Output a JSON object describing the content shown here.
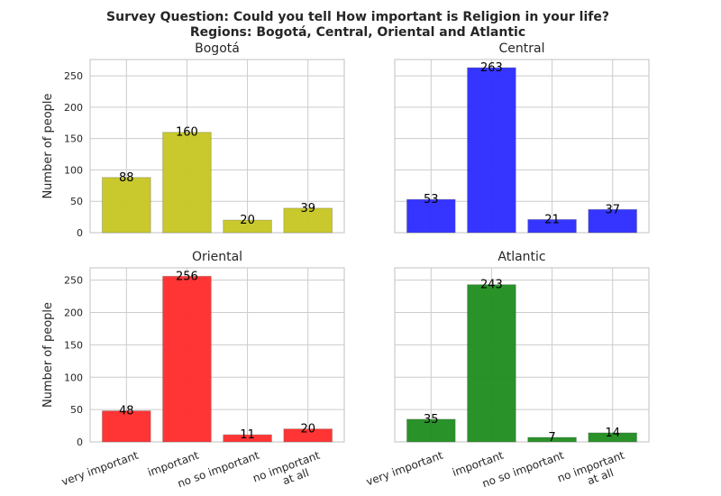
{
  "title": [
    "Survey Question: Could you tell How important is Religion in your life?",
    "Regions: Bogotá, Central, Oriental and Atlantic"
  ],
  "chart_data": [
    {
      "type": "bar",
      "title": "Bogotá",
      "ylabel": "Number of people",
      "values": [
        88,
        160,
        20,
        39
      ],
      "color": "#c6c622",
      "ylim": [
        0,
        276
      ],
      "yticks": [
        0,
        50,
        100,
        150,
        200,
        250
      ],
      "grid": true,
      "ytick_labels": true
    },
    {
      "type": "bar",
      "title": "Central",
      "values": [
        53,
        263,
        21,
        37
      ],
      "color": "#2a2aff",
      "ylim": [
        0,
        276
      ],
      "yticks": [
        0,
        50,
        100,
        150,
        200,
        250
      ],
      "grid": true,
      "ytick_labels": false
    },
    {
      "type": "bar",
      "title": "Oriental",
      "ylabel": "Number of people",
      "categories": [
        "very important",
        "important",
        "no so important",
        "no important\nat all"
      ],
      "values": [
        48,
        256,
        11,
        20
      ],
      "color": "#ff2a2a",
      "ylim": [
        0,
        269
      ],
      "yticks": [
        0,
        50,
        100,
        150,
        200,
        250
      ],
      "grid": true,
      "ytick_labels": true
    },
    {
      "type": "bar",
      "title": "Atlantic",
      "categories": [
        "very important",
        "important",
        "no so important",
        "no important\nat all"
      ],
      "values": [
        35,
        243,
        7,
        14
      ],
      "color": "#1e8c1e",
      "ylim": [
        0,
        269
      ],
      "yticks": [
        0,
        50,
        100,
        150,
        200,
        250
      ],
      "grid": true,
      "ytick_labels": false
    }
  ]
}
